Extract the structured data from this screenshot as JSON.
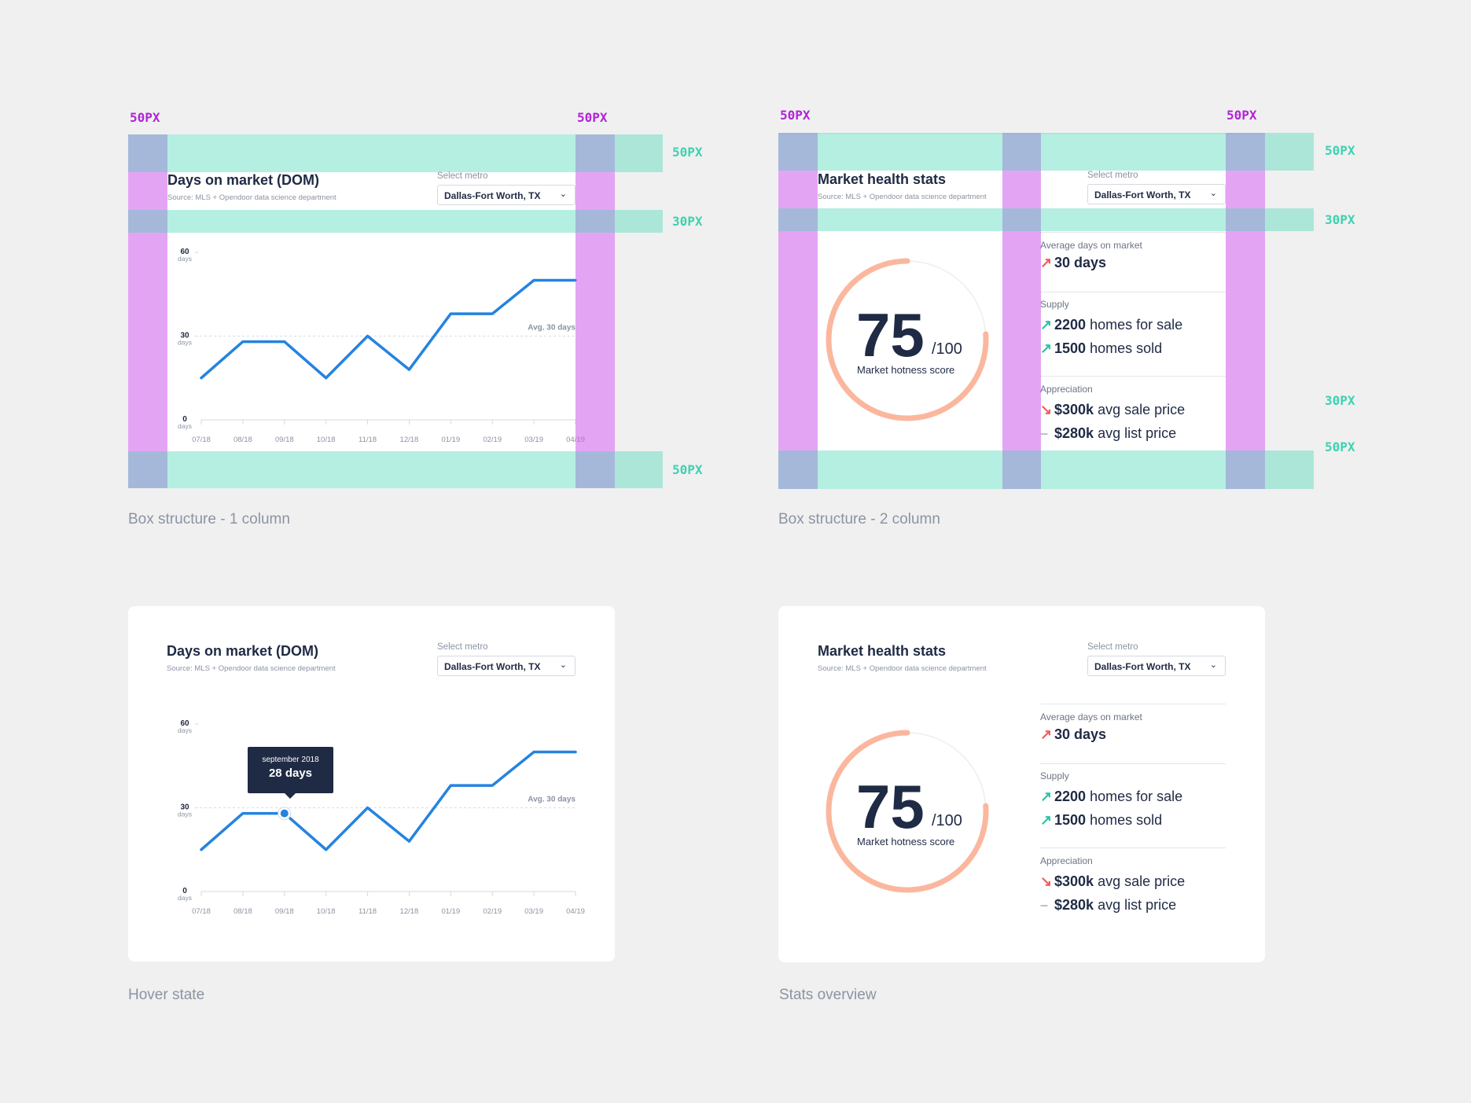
{
  "colors": {
    "line": "#2583e0",
    "ring": "#fbb79e",
    "accent_purple": "#b124d6",
    "accent_teal": "#3ed2b0",
    "up": "#2ec4a6",
    "down": "#f25d5d"
  },
  "spacing_labels": {
    "fifty": "50PX",
    "thirty": "30PX"
  },
  "captions": {
    "one_column": "Box structure - 1 column",
    "two_column": "Box structure - 2 column",
    "hover": "Hover state",
    "overview": "Stats overview"
  },
  "dom_card": {
    "title": "Days on market (DOM)",
    "source": "Source: MLS + Opendoor data science department",
    "select_label": "Select metro",
    "select_value": "Dallas-Fort Worth, TX",
    "tooltip_date": "september 2018",
    "tooltip_value": "28 days"
  },
  "stats_card": {
    "title": "Market health stats",
    "source": "Source: MLS + Opendoor data science department",
    "select_label": "Select metro",
    "select_value": "Dallas-Fort Worth, TX",
    "score": "75",
    "score_denominator": "/100",
    "score_label": "Market hotness score",
    "score_fraction": 0.75,
    "avg_dom_label": "Average days on market",
    "avg_dom_value": "30 days",
    "supply_label": "Supply",
    "supply_for_sale_value": "2200",
    "supply_for_sale_text": "homes for sale",
    "supply_sold_value": "1500",
    "supply_sold_text": "homes sold",
    "appreciation_label": "Appreciation",
    "sale_price_value": "$300k",
    "sale_price_text": "avg sale price",
    "list_price_value": "$280k",
    "list_price_text": "avg list price"
  },
  "chart_data": {
    "type": "line",
    "categories": [
      "07/18",
      "08/18",
      "09/18",
      "10/18",
      "11/18",
      "12/18",
      "01/19",
      "02/19",
      "03/19",
      "04/19"
    ],
    "values": [
      15,
      28,
      28,
      15,
      30,
      18,
      38,
      38,
      50,
      50
    ],
    "ylim": [
      0,
      60
    ],
    "yticks": [
      {
        "value": 60,
        "label": "60",
        "unit": "days"
      },
      {
        "value": 30,
        "label": "30",
        "unit": "days"
      },
      {
        "value": 0,
        "label": "0",
        "unit": "days"
      }
    ],
    "reference_line": {
      "value": 30,
      "label": "Avg. 30 days"
    },
    "xlabel": "",
    "ylabel": "",
    "grid": false
  }
}
